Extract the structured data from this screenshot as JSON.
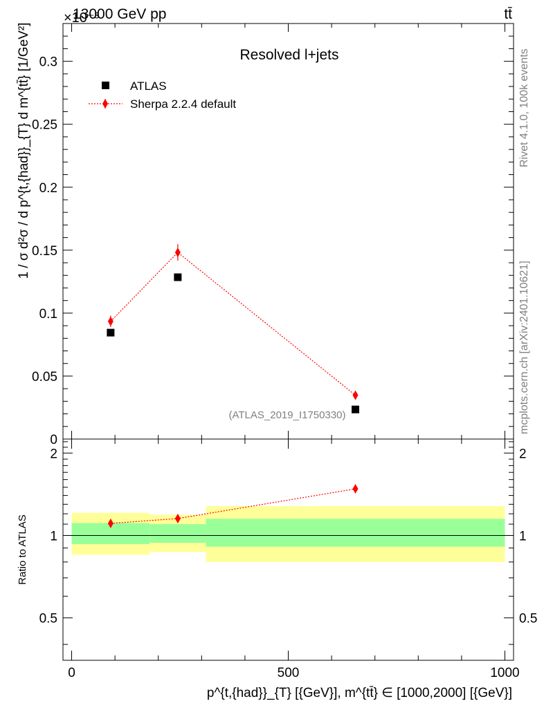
{
  "header": {
    "energy_label": "13000 GeV pp",
    "process_label": "tt̄",
    "exponent_label": "×10⁻³"
  },
  "side": {
    "rivet_label": "Rivet 4.1.0,  100k events",
    "mcplots_label": "mcplots.cern.ch [arXiv:2401.10621]"
  },
  "chart_data": [
    {
      "type": "scatter",
      "panel": "main",
      "title": "Resolved l+jets",
      "watermark": "(ATLAS_2019_I1750330)",
      "xlabel": "p^{t,{had}}_{T} [{GeV}], m^{tt̄} ∈ [1000,2000] [{GeV}]",
      "ylabel": "1 / σ d²σ / d p^{t,{had}}_{T} d m^{tt̄} [1/GeV²]",
      "y_multiplier": 0.001,
      "xlim": [
        -20,
        1020
      ],
      "ylim": [
        0,
        0.33
      ],
      "yticks": [
        0,
        0.05,
        0.1,
        0.15,
        0.2,
        0.25,
        0.3
      ],
      "ytick_labels": [
        "0",
        "0.05",
        "0.1",
        "0.15",
        "0.2",
        "0.25",
        "0.3"
      ],
      "legend_position": "top-left",
      "series": [
        {
          "name": "ATLAS",
          "color": "#000000",
          "marker": "square",
          "x": [
            90,
            245,
            655
          ],
          "y": [
            0.0845,
            0.1285,
            0.0235
          ],
          "yerr": [
            0.0008,
            0.0012,
            0.0006
          ]
        },
        {
          "name": "Sherpa 2.2.4 default",
          "color": "#ff0000",
          "marker": "diamond",
          "line": "dotted",
          "x": [
            90,
            245,
            655
          ],
          "y": [
            0.0935,
            0.1482,
            0.0348
          ],
          "yerr": [
            0.0045,
            0.0065,
            0.0018
          ]
        }
      ]
    },
    {
      "type": "scatter",
      "panel": "ratio",
      "ylabel": "Ratio to ATLAS",
      "xlim": [
        -20,
        1020
      ],
      "ylim": [
        0.35,
        2.25
      ],
      "yticks": [
        0.5,
        1,
        2
      ],
      "ytick_labels": [
        "0.5",
        "1",
        "2"
      ],
      "xticks": [
        0,
        500,
        1000
      ],
      "xtick_labels": [
        "0",
        "500",
        "1000"
      ],
      "bands": [
        {
          "x0": 0,
          "x1": 180,
          "stat_lo": 0.93,
          "stat_hi": 1.11,
          "tot_lo": 0.85,
          "tot_hi": 1.21
        },
        {
          "x0": 180,
          "x1": 310,
          "stat_lo": 0.94,
          "stat_hi": 1.1,
          "tot_lo": 0.87,
          "tot_hi": 1.19
        },
        {
          "x0": 310,
          "x1": 1000,
          "stat_lo": 0.91,
          "stat_hi": 1.15,
          "tot_lo": 0.8,
          "tot_hi": 1.28
        }
      ],
      "band_colors": {
        "stat": "#99ff99",
        "total": "#ffff99"
      },
      "series": [
        {
          "name": "Sherpa 2.2.4 default",
          "color": "#ff0000",
          "marker": "diamond",
          "line": "dotted",
          "x": [
            90,
            245,
            655
          ],
          "y": [
            1.107,
            1.153,
            1.48
          ],
          "yerr": [
            0.04,
            0.04,
            0.04
          ]
        }
      ]
    }
  ]
}
